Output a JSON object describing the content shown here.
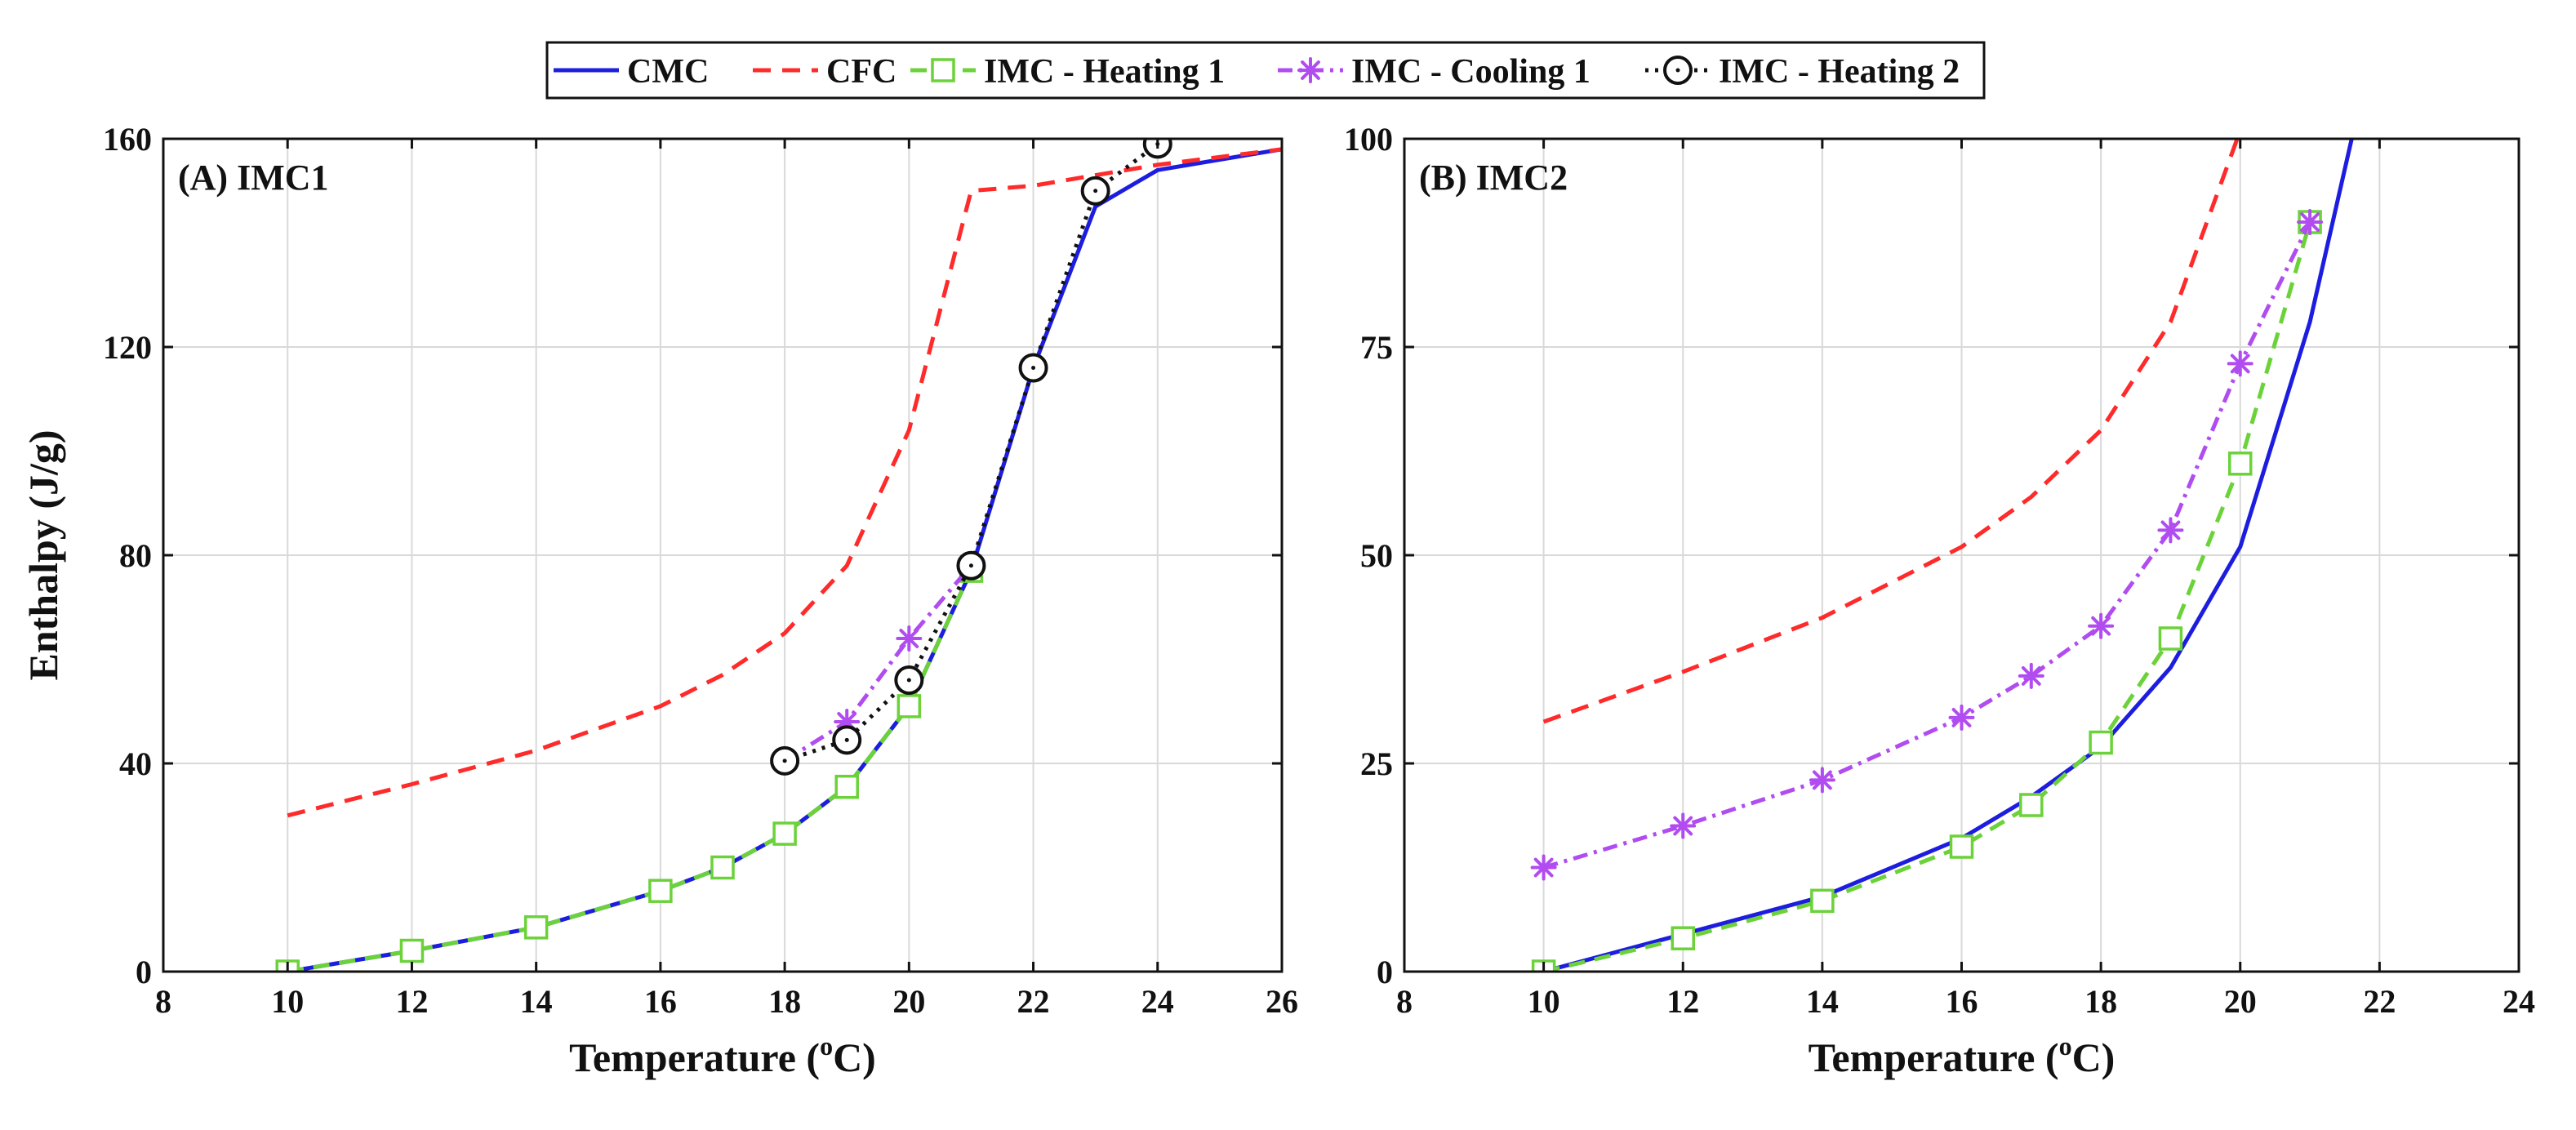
{
  "legend": {
    "entries": [
      {
        "label": "CMC",
        "color": "#1d1de0",
        "dash": "",
        "marker": "none"
      },
      {
        "label": "CFC",
        "color": "#ff2a2a",
        "dash": "22,14",
        "marker": "none"
      },
      {
        "label": "IMC - Heating 1",
        "color": "#6bd23a",
        "dash": "20,12",
        "marker": "square"
      },
      {
        "label": "IMC - Cooling 1",
        "color": "#b04cf0",
        "dash": "18,8,4,8",
        "marker": "asterisk"
      },
      {
        "label": "IMC - Heating 2",
        "color": "#111111",
        "dash": "4,8",
        "marker": "circle"
      }
    ]
  },
  "chart_data": [
    {
      "type": "line",
      "panel_label": "(A) IMC1",
      "xlabel": "Temperature (",
      "xlabel_sup": "o",
      "xlabel_end": "C)",
      "ylabel": "Enthalpy (J/g)",
      "xlim": [
        8,
        26
      ],
      "ylim": [
        0,
        160
      ],
      "xticks": [
        8,
        10,
        12,
        14,
        16,
        18,
        20,
        22,
        24,
        26
      ],
      "yticks": [
        0,
        40,
        80,
        120,
        160
      ],
      "grid": true,
      "series": [
        {
          "name": "CMC",
          "x": [
            10,
            12,
            14,
            16,
            17,
            18,
            19,
            20,
            21,
            22,
            23,
            24,
            26
          ],
          "y": [
            0,
            4,
            8.5,
            15.5,
            20,
            26.5,
            35.5,
            51,
            77,
            116,
            147,
            154,
            158
          ]
        },
        {
          "name": "CFC",
          "x": [
            10,
            12,
            14,
            16,
            17,
            18,
            19,
            20,
            21,
            22,
            23,
            24,
            26
          ],
          "y": [
            30,
            36,
            42.5,
            51,
            57,
            65,
            78,
            104,
            150,
            151,
            153,
            155,
            158
          ]
        },
        {
          "name": "IMC - Heating 1",
          "x": [
            10,
            12,
            14,
            16,
            17,
            18,
            19,
            20,
            21
          ],
          "y": [
            0,
            4,
            8.5,
            15.5,
            20,
            26.5,
            35.5,
            51,
            77
          ]
        },
        {
          "name": "IMC - Cooling 1",
          "x": [
            18,
            19,
            20,
            21
          ],
          "y": [
            40.5,
            48,
            64,
            78
          ]
        },
        {
          "name": "IMC - Heating 2",
          "x": [
            18,
            19,
            20,
            21,
            22,
            23,
            24
          ],
          "y": [
            40.5,
            44.5,
            56,
            78,
            116,
            150,
            159
          ]
        }
      ]
    },
    {
      "type": "line",
      "panel_label": "(B) IMC2",
      "xlabel": "Temperature (",
      "xlabel_sup": "o",
      "xlabel_end": "C)",
      "ylabel": "",
      "xlim": [
        8,
        24
      ],
      "ylim": [
        0,
        100
      ],
      "xticks": [
        8,
        10,
        12,
        14,
        16,
        18,
        20,
        22,
        24
      ],
      "yticks": [
        0,
        25,
        50,
        75,
        100
      ],
      "grid": true,
      "series": [
        {
          "name": "CMC",
          "x": [
            10,
            12,
            14,
            16,
            17,
            18,
            19,
            20,
            21,
            21.6
          ],
          "y": [
            0,
            4.5,
            9,
            16,
            21,
            27,
            36.5,
            51,
            78,
            100
          ]
        },
        {
          "name": "CFC",
          "x": [
            10,
            12,
            14,
            16,
            17,
            18,
            19,
            20,
            20.1
          ],
          "y": [
            30,
            36,
            42.5,
            51,
            57,
            65,
            78,
            101,
            100
          ]
        },
        {
          "name": "IMC - Heating 1",
          "x": [
            10,
            12,
            14,
            16,
            17,
            18,
            19,
            20,
            21
          ],
          "y": [
            0,
            4,
            8.5,
            15,
            20,
            27.5,
            40,
            61,
            90
          ]
        },
        {
          "name": "IMC - Cooling 1",
          "x": [
            10,
            12,
            14,
            16,
            17,
            18,
            19,
            20,
            21
          ],
          "y": [
            12.5,
            17.5,
            23,
            30.5,
            35.5,
            41.5,
            53,
            73,
            90
          ]
        }
      ]
    }
  ]
}
